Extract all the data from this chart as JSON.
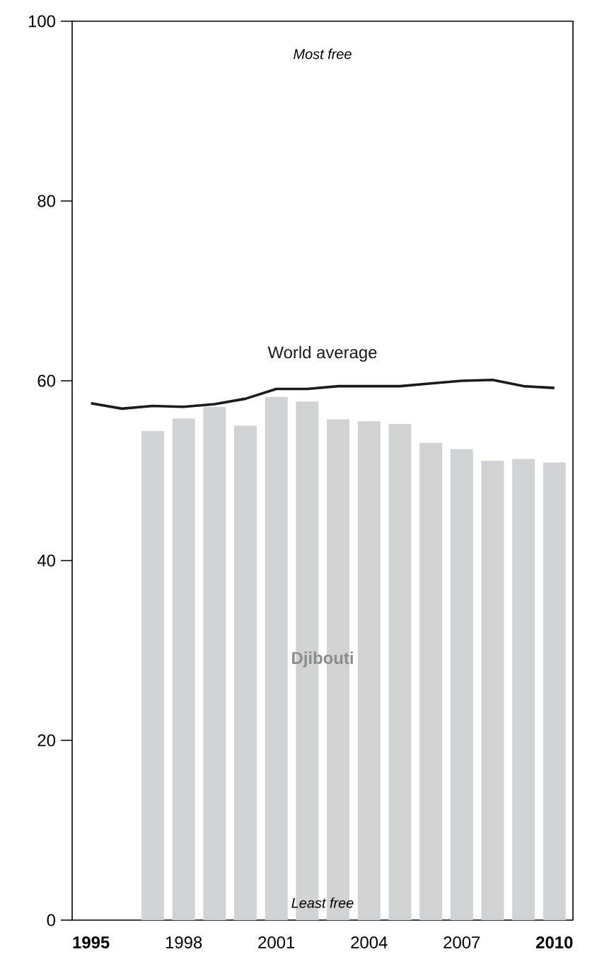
{
  "chart_data": {
    "type": "bar",
    "categories": [
      "1995",
      null,
      null,
      "1998",
      null,
      null,
      "2001",
      null,
      null,
      "2004",
      null,
      null,
      "2007",
      null,
      null,
      "2010"
    ],
    "series": [
      {
        "name": "Djibouti",
        "color": "#d1d2d4",
        "values": [
          null,
          null,
          54.4,
          55.8,
          57.1,
          55.0,
          58.2,
          57.7,
          55.7,
          55.5,
          55.2,
          53.1,
          52.4,
          51.1,
          51.3,
          50.9
        ]
      },
      {
        "name": "World average",
        "type": "line",
        "color": "#1a1a1a",
        "values": [
          57.5,
          56.9,
          57.2,
          57.1,
          57.4,
          58.0,
          59.1,
          59.1,
          59.4,
          59.4,
          59.4,
          59.7,
          60.0,
          60.1,
          59.4,
          59.2
        ]
      }
    ],
    "ylim": [
      0,
      100
    ],
    "yticks": [
      0,
      20,
      40,
      60,
      80,
      100
    ],
    "annotations": [
      "Most free",
      "Least free"
    ]
  }
}
